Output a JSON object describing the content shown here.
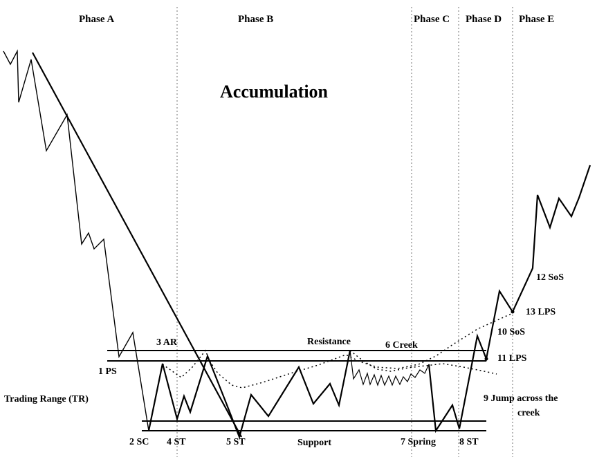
{
  "title": "Accumulation",
  "phases": [
    "Phase A",
    "Phase B",
    "Phase C",
    "Phase D",
    "Phase E"
  ],
  "labels": {
    "ps": "1 PS",
    "sc": "2 SC",
    "ar": "3 AR",
    "st4": "4 ST",
    "st5": "5 ST",
    "creek": "6 Creek",
    "spring": "7 Spring",
    "st8": "8 ST",
    "jump1": "9 Jump across the",
    "jump2": "creek",
    "sos10": "10 SoS",
    "lps11": "11 LPS",
    "sos12": "12 SoS",
    "lps13": "13 LPS",
    "resistance": "Resistance",
    "support": "Support",
    "trading_range": "Trading Range (TR)"
  },
  "colors": {
    "line": "#000000",
    "background": "#ffffff",
    "divider": "#888888"
  }
}
